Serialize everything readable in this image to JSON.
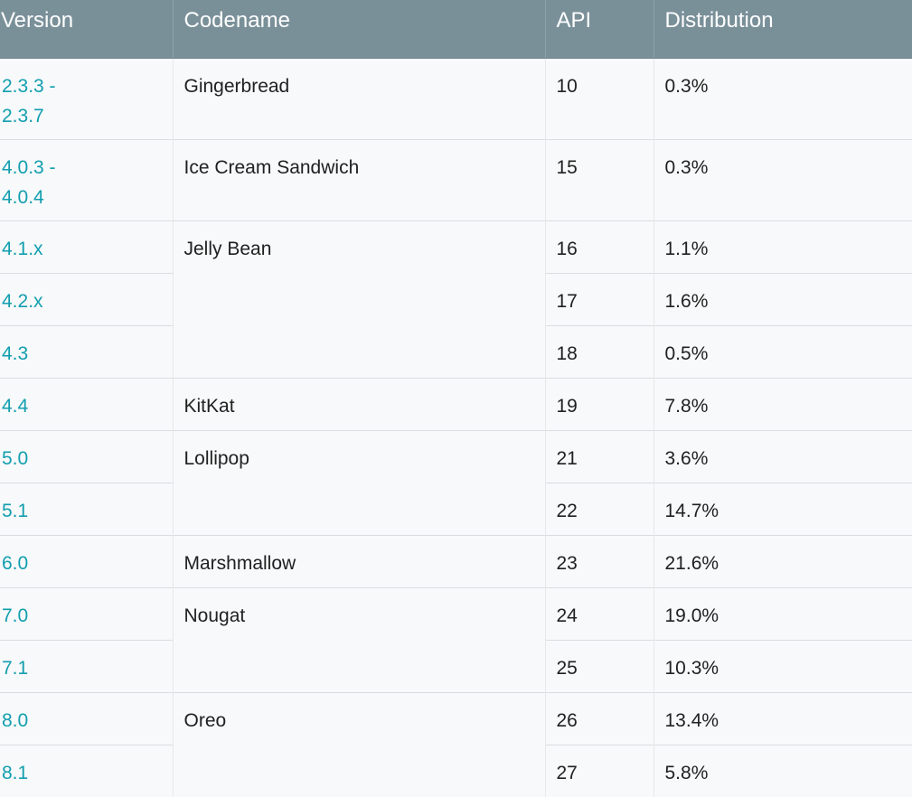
{
  "table": {
    "headers": {
      "version": "Version",
      "codename": "Codename",
      "api": "API",
      "distribution": "Distribution"
    },
    "rows": [
      {
        "version": "2.3.3 -\n2.3.7",
        "codename": "Gingerbread",
        "api": "10",
        "distribution": "0.3%"
      },
      {
        "version": "4.0.3 -\n4.0.4",
        "codename": "Ice Cream Sandwich",
        "api": "15",
        "distribution": "0.3%"
      },
      {
        "version": "4.1.x",
        "codename": "Jelly Bean",
        "api": "16",
        "distribution": "1.1%"
      },
      {
        "version": "4.2.x",
        "api": "17",
        "distribution": "1.6%"
      },
      {
        "version": "4.3",
        "api": "18",
        "distribution": "0.5%"
      },
      {
        "version": "4.4",
        "codename": "KitKat",
        "api": "19",
        "distribution": "7.8%"
      },
      {
        "version": "5.0",
        "codename": "Lollipop",
        "api": "21",
        "distribution": "3.6%"
      },
      {
        "version": "5.1",
        "api": "22",
        "distribution": "14.7%"
      },
      {
        "version": "6.0",
        "codename": "Marshmallow",
        "api": "23",
        "distribution": "21.6%"
      },
      {
        "version": "7.0",
        "codename": "Nougat",
        "api": "24",
        "distribution": "19.0%"
      },
      {
        "version": "7.1",
        "api": "25",
        "distribution": "10.3%"
      },
      {
        "version": "8.0",
        "codename": "Oreo",
        "api": "26",
        "distribution": "13.4%"
      },
      {
        "version": "8.1",
        "api": "27",
        "distribution": "5.8%"
      }
    ]
  },
  "colors": {
    "header_bg": "#7a9099",
    "version_link": "#129eaf",
    "row_bg": "#f7f9fa"
  }
}
